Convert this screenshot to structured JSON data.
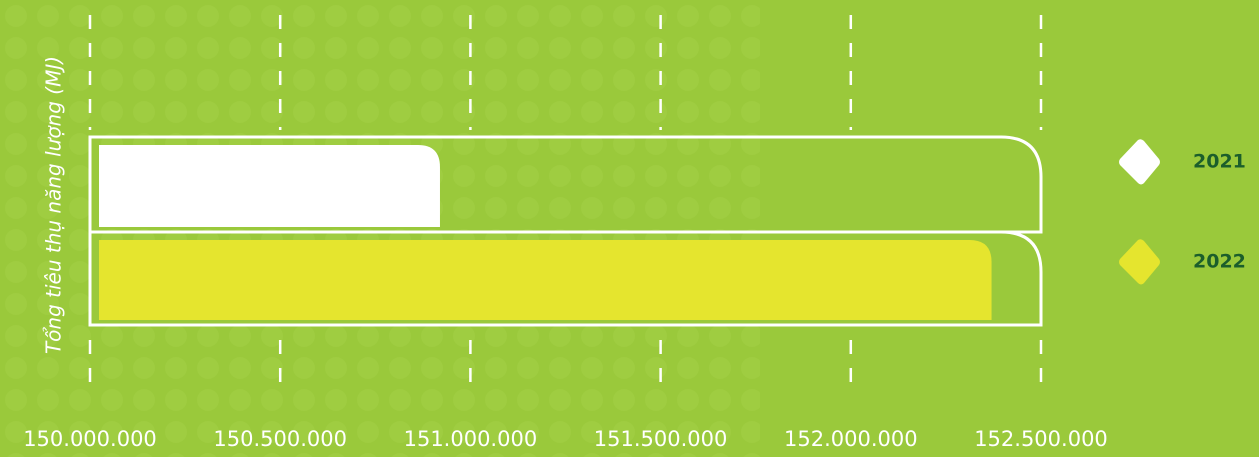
{
  "chart_data": {
    "type": "bar",
    "orientation": "horizontal",
    "y_label": "Tổng tiêu thụ năng lượng (MJ)",
    "categories": [
      null
    ],
    "series": [
      {
        "name": "2021",
        "color": "#ffffff",
        "values": [
          150920000
        ]
      },
      {
        "name": "2022",
        "color": "#e5e52e",
        "values": [
          152370000
        ]
      }
    ],
    "xlim": [
      150000000,
      152500000
    ],
    "xticks": [
      {
        "value": 150000000,
        "label": "150.000.000"
      },
      {
        "value": 150500000,
        "label": "150.500.000"
      },
      {
        "value": 151000000,
        "label": "151.000.000"
      },
      {
        "value": 151500000,
        "label": "151.500.000"
      },
      {
        "value": 152000000,
        "label": "152.000.000"
      },
      {
        "value": 152500000,
        "label": "152.500.000"
      }
    ],
    "grid": true,
    "legend": "right"
  }
}
